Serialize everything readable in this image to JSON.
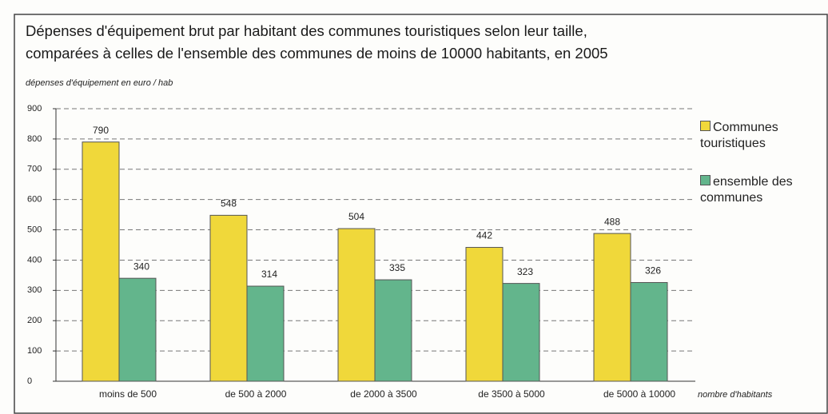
{
  "chart_data": {
    "type": "bar",
    "title": [
      "Dépenses d'équipement brut par habitant des communes touristiques selon leur taille,",
      "comparées à celles de l'ensemble des communes de moins de 10000 habitants, en 2005"
    ],
    "y_label": "dépenses d'équipement en euro / hab",
    "x_label": "nombre d'habitants",
    "categories": [
      "moins de 500",
      "de 500 à 2000",
      "de 2000 à 3500",
      "de 3500 à 5000",
      "de 5000 à 10000"
    ],
    "series": [
      {
        "name": "Communes touristiques",
        "color": "#f0d83a",
        "values": [
          790,
          548,
          504,
          442,
          488
        ]
      },
      {
        "name": "ensemble des communes",
        "color": "#63b58c",
        "values": [
          340,
          314,
          335,
          323,
          326
        ]
      }
    ],
    "ylim": [
      0,
      900
    ],
    "yticks": [
      0,
      100,
      200,
      300,
      400,
      500,
      600,
      700,
      800,
      900
    ],
    "grid": true
  }
}
